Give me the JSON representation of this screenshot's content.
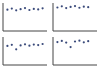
{
  "chart_data": [
    {
      "type": "scatter",
      "x": [
        1,
        2,
        3,
        4,
        5,
        6,
        7,
        8,
        9
      ],
      "series": [
        {
          "color": "#3a4a7a",
          "values": [
            7.6,
            8.0,
            7.4,
            7.8,
            8.2,
            7.5,
            7.9,
            7.7,
            8.1
          ]
        }
      ],
      "xlim": [
        0,
        10
      ],
      "ylim": [
        0,
        10
      ],
      "xticks": [
        0,
        10
      ],
      "yticks": [
        0,
        10
      ],
      "tick_labels": false
    },
    {
      "type": "scatter",
      "x": [
        1,
        2,
        3,
        4,
        5,
        6,
        7,
        8
      ],
      "series": [
        {
          "color": "#3a4a7a",
          "values": [
            8.4,
            8.8,
            8.2,
            8.6,
            8.9,
            8.3,
            8.7,
            8.5
          ]
        }
      ],
      "xlim": [
        0,
        10
      ],
      "ylim": [
        0,
        10
      ],
      "xticks": [
        0,
        10
      ],
      "yticks": [
        0,
        10
      ],
      "tick_labels": false
    },
    {
      "type": "scatter",
      "x": [
        1,
        2,
        3,
        4,
        5,
        6,
        7,
        8,
        9
      ],
      "series": [
        {
          "color": "#3a4a7a",
          "values": [
            6.8,
            7.2,
            5.6,
            7.0,
            7.4,
            6.9,
            7.3,
            7.1,
            7.5
          ]
        }
      ],
      "xlim": [
        0,
        10
      ],
      "ylim": [
        0,
        10
      ],
      "xticks": [
        0,
        10
      ],
      "yticks": [
        0,
        10
      ],
      "tick_labels": false
    },
    {
      "type": "scatter",
      "x": [
        1,
        2,
        3,
        4,
        5,
        6,
        7,
        8
      ],
      "series": [
        {
          "color": "#3a4a7a",
          "values": [
            8.2,
            8.6,
            8.0,
            6.4,
            8.4,
            8.7,
            8.1,
            8.5
          ]
        }
      ],
      "xlim": [
        0,
        10
      ],
      "ylim": [
        0,
        10
      ],
      "xticks": [
        0,
        10
      ],
      "yticks": [
        0,
        10
      ],
      "tick_labels": false
    }
  ]
}
